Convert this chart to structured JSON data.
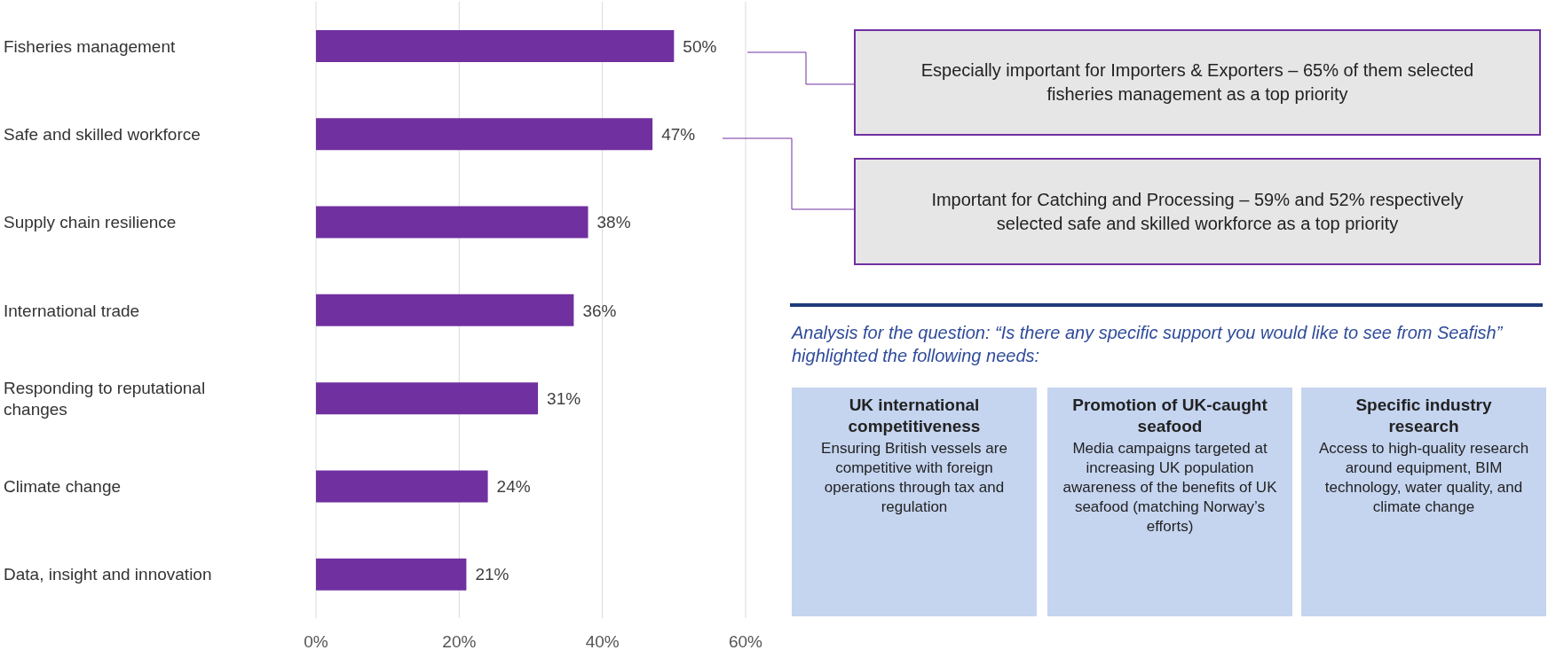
{
  "chart_data": {
    "type": "bar",
    "orientation": "horizontal",
    "categories": [
      "Fisheries management",
      "Safe and skilled workforce",
      "Supply chain resilience",
      "International trade",
      "Responding to reputational changes",
      "Climate change",
      "Data, insight and innovation"
    ],
    "values": [
      50,
      47,
      38,
      36,
      31,
      24,
      21
    ],
    "value_labels": [
      "50%",
      "47%",
      "38%",
      "36%",
      "31%",
      "24%",
      "21%"
    ],
    "color": "#7030a0",
    "xlim": [
      0,
      60
    ],
    "xticks": [
      {
        "value": 0,
        "label": "0%"
      },
      {
        "value": 20,
        "label": "20%"
      },
      {
        "value": 40,
        "label": "40%"
      },
      {
        "value": 60,
        "label": "60%"
      }
    ],
    "grid": "x",
    "annotations": [
      "Especially important for Importers & Exporters – 65% of them selected fisheries management as a top priority",
      "Important for Catching and Processing – 59% and 52% respectively selected safe and skilled workforce as a top priority",
      "Analysis for the question: “Is there any specific support you would like to see from Seafish” highlighted the following needs:",
      "UK international competitiveness",
      "Ensuring British vessels are competitive with foreign operations through tax and regulation",
      "Promotion of UK-caught seafood",
      "Media campaigns targeted at increasing UK population awareness of the benefits of UK seafood (matching Norway’s efforts)",
      "Specific industry research",
      "Access to high-quality research around equipment, BIM technology, water quality, and climate change"
    ]
  }
}
